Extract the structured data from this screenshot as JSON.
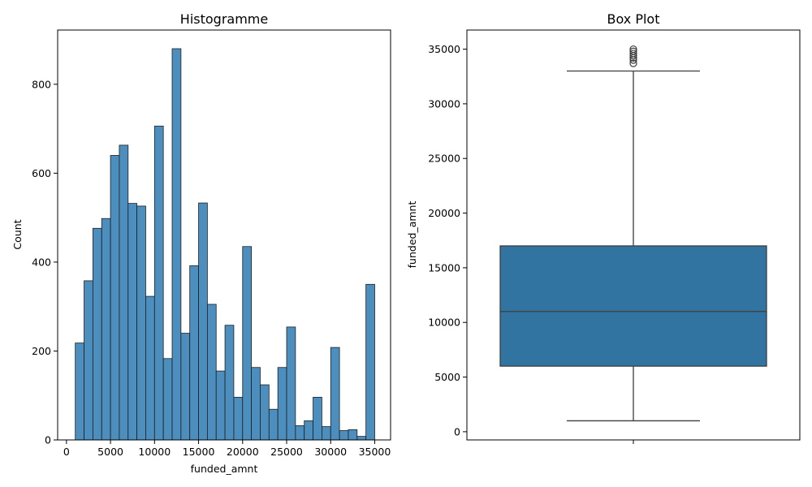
{
  "chart_data": [
    {
      "type": "bar",
      "title": "Histogramme",
      "xlabel": "funded_amnt",
      "ylabel": "Count",
      "xlim": [
        -1000,
        36800
      ],
      "ylim": [
        0,
        922
      ],
      "bin_width": 1000,
      "x_ticks": [
        0,
        5000,
        10000,
        15000,
        20000,
        25000,
        30000,
        35000
      ],
      "y_ticks": [
        0,
        200,
        400,
        600,
        800
      ],
      "bins": [
        {
          "start": 1000,
          "count": 218
        },
        {
          "start": 2000,
          "count": 358
        },
        {
          "start": 3000,
          "count": 476
        },
        {
          "start": 4000,
          "count": 498
        },
        {
          "start": 5000,
          "count": 640
        },
        {
          "start": 6000,
          "count": 663
        },
        {
          "start": 7000,
          "count": 532
        },
        {
          "start": 8000,
          "count": 526
        },
        {
          "start": 9000,
          "count": 323
        },
        {
          "start": 10000,
          "count": 706
        },
        {
          "start": 11000,
          "count": 183
        },
        {
          "start": 12000,
          "count": 880
        },
        {
          "start": 13000,
          "count": 240
        },
        {
          "start": 14000,
          "count": 392
        },
        {
          "start": 15000,
          "count": 533
        },
        {
          "start": 16000,
          "count": 305
        },
        {
          "start": 17000,
          "count": 155
        },
        {
          "start": 18000,
          "count": 258
        },
        {
          "start": 19000,
          "count": 96
        },
        {
          "start": 20000,
          "count": 435
        },
        {
          "start": 21000,
          "count": 163
        },
        {
          "start": 22000,
          "count": 124
        },
        {
          "start": 23000,
          "count": 69
        },
        {
          "start": 24000,
          "count": 163
        },
        {
          "start": 25000,
          "count": 254
        },
        {
          "start": 26000,
          "count": 32
        },
        {
          "start": 27000,
          "count": 43
        },
        {
          "start": 28000,
          "count": 96
        },
        {
          "start": 29000,
          "count": 30
        },
        {
          "start": 30000,
          "count": 208
        },
        {
          "start": 31000,
          "count": 21
        },
        {
          "start": 32000,
          "count": 23
        },
        {
          "start": 33000,
          "count": 8
        },
        {
          "start": 34000,
          "count": 350
        }
      ],
      "bar_color": "#4c8ebd",
      "edge_color": "#1f1f1f",
      "grid": false
    },
    {
      "type": "box",
      "title": "Box Plot",
      "xlabel": "",
      "ylabel": "funded_amnt",
      "ylim": [
        -750,
        36750
      ],
      "y_ticks": [
        0,
        5000,
        10000,
        15000,
        20000,
        25000,
        30000,
        35000
      ],
      "whisker_low": 1000,
      "q1": 6000,
      "median": 11000,
      "q3": 17000,
      "whisker_high": 33000,
      "outliers": [
        33700,
        34000,
        34200,
        34400,
        34600,
        34800,
        35000
      ],
      "box_color": "#3274a1",
      "line_color": "#3d3d3d",
      "grid": false
    }
  ]
}
